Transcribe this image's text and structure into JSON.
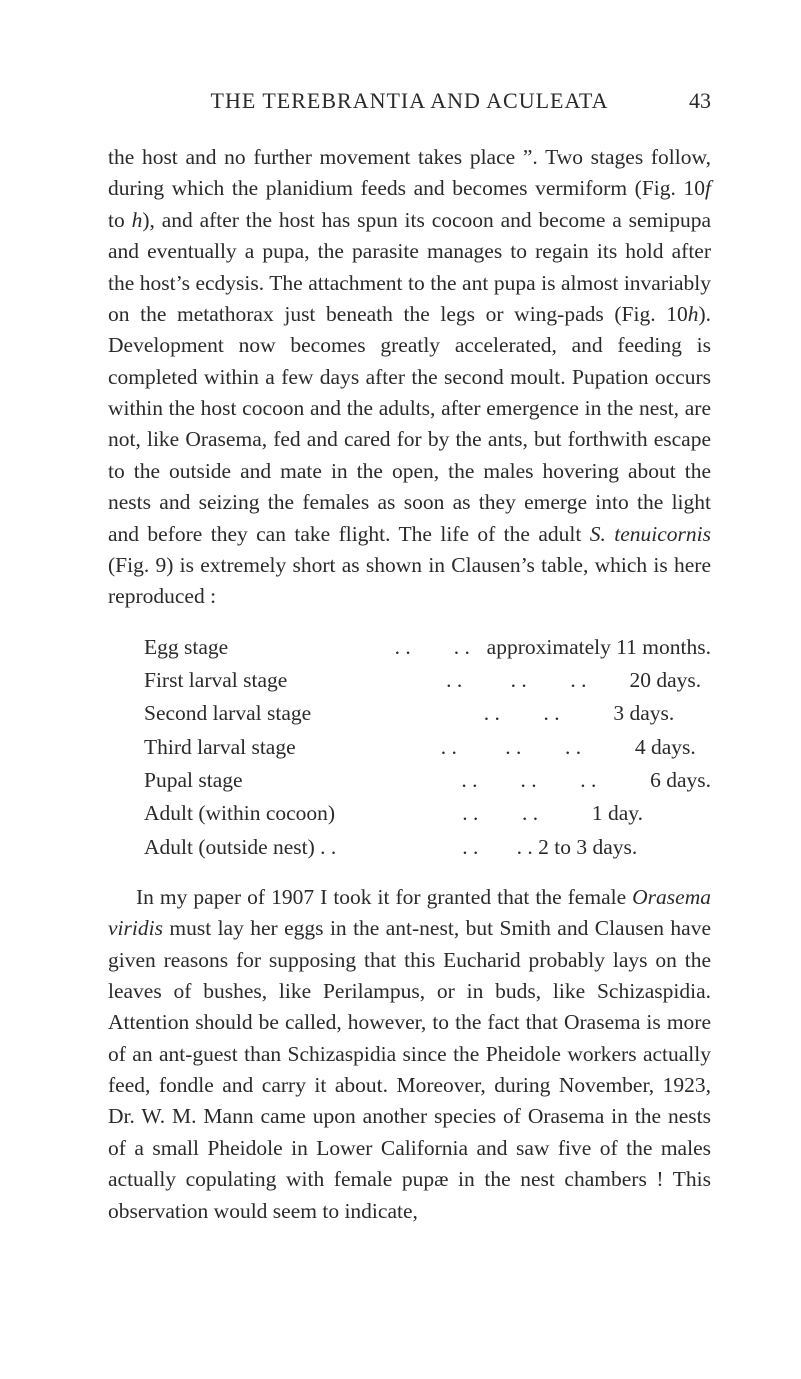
{
  "header": {
    "running_title": "THE TEREBRANTIA AND ACULEATA",
    "page_number": "43"
  },
  "para1_html": "the host and no further movement takes place ”. Two stages follow, during which the planidium feeds and becomes vermiform (Fig. 10<span class=\"italic\">f</span> to <span class=\"italic\">h</span>), and after the host has spun its cocoon and become a semipupa and eventually a pupa, the parasite manages to regain its hold after the host’s ecdysis. The attachment to the ant pupa is almost invariably on the metathorax just beneath the legs or wing-pads (Fig. 10<span class=\"italic\">h</span>). Development now becomes greatly accelerated, and feeding is completed within a few days after the second moult. Pupation occurs within the host cocoon and the adults, after emergence in the nest, are not, like Orasema, fed and cared for by the ants, but forthwith escape to the outside and mate in the open, the males hovering about the nests and seizing the females as soon as they emerge into the light and before they can take flight. The life of the adult <span class=\"italic\">S. tenuicornis</span> (Fig. 9) is extremely short as shown in Clausen’s table, which is here reproduced :",
  "table": {
    "rows": [
      {
        "label": "Egg stage",
        "dots": "     . .        . .",
        "value": "  approximately 11 months."
      },
      {
        "label": "First larval stage",
        "dots": "   . .         . .",
        "value": "       . .        20 days."
      },
      {
        "label": "Second larval stage",
        "dots": "          . .",
        "value": "       . .          3 days."
      },
      {
        "label": "Third larval stage",
        "dots": "  . .         . .",
        "value": "       . .          4 days."
      },
      {
        "label": "Pupal stage",
        "dots": "            . .        . .",
        "value": "       . .          6 days."
      },
      {
        "label": "Adult (within cocoon)",
        "dots": "      . .",
        "value": "       . .          1 day."
      },
      {
        "label": "Adult (outside nest) . .",
        "dots": "      . .",
        "value": "      . . 2 to 3 days."
      }
    ]
  },
  "para2_html": "In my paper of 1907 I took it for granted that the female <span class=\"italic\">Orasema viridis</span> must lay her eggs in the ant-nest, but Smith and Clausen have given reasons for supposing that this Eucharid probably lays on the leaves of bushes, like Perilampus, or in buds, like Schizaspidia. Attention should be called, however, to the fact that Orasema is more of an ant-guest than Schizaspidia since the Pheidole workers actually feed, fondle and carry it about. Moreover, during November, 1923, Dr. W. M. Mann came upon another species of Orasema in the nests of a small Pheidole in Lower California and saw five of the males actually copulating with female pupæ in the nest chambers ! This observation would seem to indicate,"
}
